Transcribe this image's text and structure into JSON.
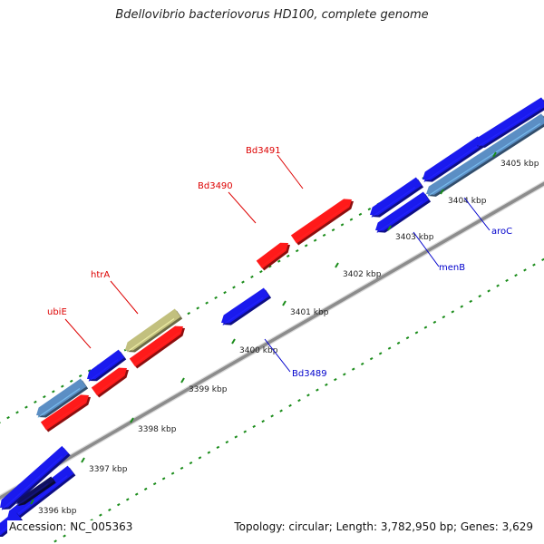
{
  "title": "Bdellovibrio bacteriovorus HD100, complete genome",
  "footer": {
    "accession": "Accession: NC_005363",
    "summary": "Topology: circular; Length: 3,782,950 bp; Genes: 3,629"
  },
  "colors": {
    "backbone": "#8c8c8c",
    "forward_gene": "#ff1a1a",
    "reverse_gene": "#1a1aee",
    "steelblue_gene": "#5b8ec4",
    "khaki_gene": "#c2c07e",
    "navy_gene": "#101060",
    "tick": "#1a8c1a",
    "forward_label": "#dd0000",
    "reverse_label": "#0000cc"
  },
  "ticks": [
    {
      "label": "3396 kbp"
    },
    {
      "label": "3397 kbp"
    },
    {
      "label": "3398 kbp"
    },
    {
      "label": "3399 kbp"
    },
    {
      "label": "3400 kbp"
    },
    {
      "label": "3401 kbp"
    },
    {
      "label": "3402 kbp"
    },
    {
      "label": "3403 kbp"
    },
    {
      "label": "3404 kbp"
    },
    {
      "label": "3405 kbp"
    }
  ],
  "gene_labels": [
    {
      "name": "ubiE",
      "strand": "forward"
    },
    {
      "name": "htrA",
      "strand": "forward"
    },
    {
      "name": "Bd3490",
      "strand": "forward"
    },
    {
      "name": "Bd3491",
      "strand": "forward"
    },
    {
      "name": "Bd3489",
      "strand": "reverse"
    },
    {
      "name": "menB",
      "strand": "reverse"
    },
    {
      "name": "aroC",
      "strand": "reverse"
    }
  ]
}
